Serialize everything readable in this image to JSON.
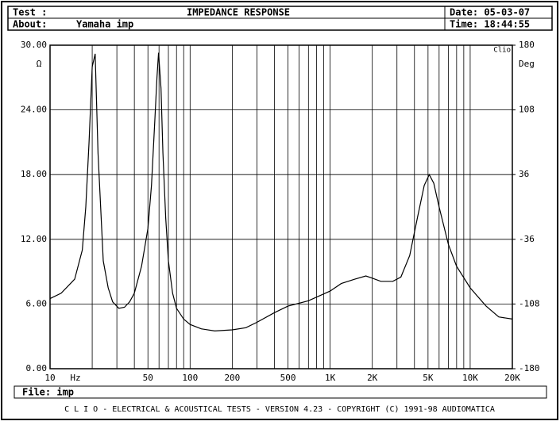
{
  "header": {
    "test": "Test :",
    "title": "IMPEDANCE RESPONSE",
    "date": "Date: 05-03-07",
    "about": "About:",
    "about_value": "Yamaha imp",
    "time": "Time: 18:44:55"
  },
  "chart_data": {
    "type": "line",
    "xscale": "log",
    "grid": true,
    "x": [
      10,
      12,
      15,
      17,
      18,
      19,
      20,
      21,
      22,
      24,
      26,
      28,
      31,
      34,
      37,
      40,
      45,
      50,
      53,
      56,
      58,
      59.5,
      62,
      64,
      67,
      70,
      75,
      80,
      90,
      100,
      120,
      150,
      200,
      250,
      300,
      400,
      500,
      700,
      1000,
      1200,
      1500,
      1800,
      2000,
      2300,
      2800,
      3200,
      3700,
      4200,
      4700,
      5100,
      5500,
      6000,
      7000,
      8000,
      10000,
      13000,
      16000,
      20000
    ],
    "series": [
      {
        "name": "imp",
        "color": "#000000",
        "values": [
          6.5,
          7.0,
          8.3,
          11,
          15,
          21,
          28,
          29.2,
          20,
          10,
          7.5,
          6.2,
          5.6,
          5.7,
          6.2,
          7,
          9.5,
          13,
          17,
          23,
          27,
          29.3,
          26,
          20,
          14,
          10,
          7,
          5.6,
          4.6,
          4.1,
          3.7,
          3.5,
          3.6,
          3.8,
          4.3,
          5.2,
          5.8,
          6.3,
          7.2,
          7.9,
          8.3,
          8.6,
          8.4,
          8.1,
          8.1,
          8.5,
          10.5,
          14,
          17,
          18,
          17.2,
          15,
          11.5,
          9.5,
          7.5,
          5.8,
          4.8,
          4.6
        ]
      }
    ],
    "xlim": [
      10,
      20000
    ],
    "xticks": [
      10,
      50,
      100,
      200,
      500,
      {
        "value": 1000,
        "label": "1K"
      },
      {
        "value": 2000,
        "label": "2K"
      },
      {
        "value": 5000,
        "label": "5K"
      },
      {
        "value": 10000,
        "label": "10K"
      },
      {
        "value": 20000,
        "label": "20K"
      }
    ],
    "xgrid": [
      20,
      30,
      40,
      60,
      70,
      80,
      90,
      300,
      400,
      600,
      700,
      800,
      900,
      3000,
      4000,
      6000,
      7000,
      8000,
      9000
    ],
    "xlabel": "Hz",
    "ylabel": "Ω",
    "y2label": "Deg",
    "brand": "Clio",
    "ylim": [
      0,
      30
    ],
    "yticks": [
      {
        "value": 0,
        "label": "0.00"
      },
      {
        "value": 6,
        "label": "6.00"
      },
      {
        "value": 12,
        "label": "12.00"
      },
      {
        "value": 18,
        "label": "18.00"
      },
      {
        "value": 24,
        "label": "24.00"
      },
      {
        "value": 30,
        "label": "30.00"
      }
    ],
    "y2lim": [
      -180,
      180
    ],
    "y2ticks": [
      -180,
      -108,
      -36,
      36,
      108,
      180
    ]
  },
  "footer": {
    "file": "File: imp",
    "banner": "C L I O  -  ELECTRICAL & ACOUSTICAL TESTS  -  VERSION 4.23  -  COPYRIGHT (C) 1991-98 AUDIOMATICA"
  }
}
